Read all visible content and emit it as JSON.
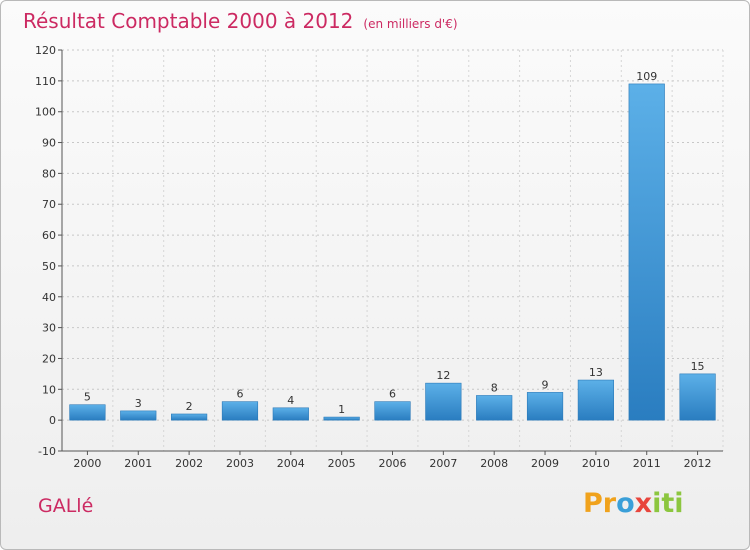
{
  "title": "Résultat Comptable 2000 à 2012",
  "unit": "(en milliers d'€)",
  "commune": "GALlé",
  "logo": {
    "p1": "Pr",
    "p2": "o",
    "p3": "x",
    "p4": "iti"
  },
  "colors": {
    "title": "#cc2a62",
    "bar_light": "#5cb0e8",
    "bar_dark": "#2a7dc0"
  },
  "chart_data": {
    "type": "bar",
    "title": "Résultat Comptable 2000 à 2012",
    "ylabel": "(en milliers d'€)",
    "xlabel": "",
    "categories": [
      "2000",
      "2001",
      "2002",
      "2003",
      "2004",
      "2005",
      "2006",
      "2007",
      "2008",
      "2009",
      "2010",
      "2011",
      "2012"
    ],
    "values": [
      5,
      3,
      2,
      6,
      4,
      1,
      6,
      12,
      8,
      9,
      13,
      109,
      15
    ],
    "ylim": [
      -10,
      120
    ],
    "yticks": [
      -10,
      0,
      10,
      20,
      30,
      40,
      50,
      60,
      70,
      80,
      90,
      100,
      110,
      120
    ],
    "grid": true
  }
}
